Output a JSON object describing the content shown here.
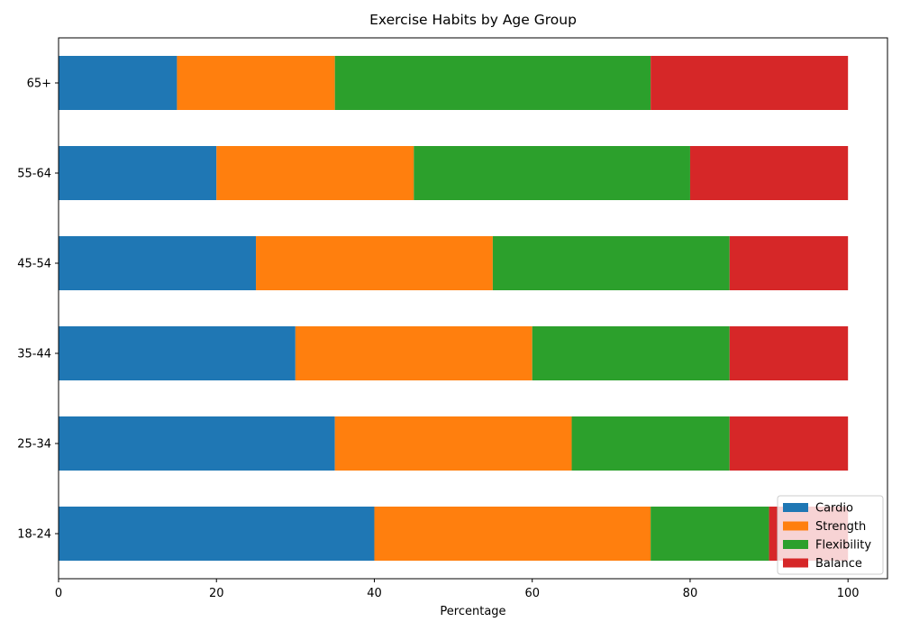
{
  "chart_data": {
    "type": "bar",
    "orientation": "horizontal",
    "stacked": true,
    "title": "Exercise Habits by Age Group",
    "xlabel": "Percentage",
    "ylabel": "",
    "xlim": [
      0,
      105
    ],
    "xticks": [
      0,
      20,
      40,
      60,
      80,
      100
    ],
    "categories": [
      "18-24",
      "25-34",
      "35-44",
      "45-54",
      "55-64",
      "65+"
    ],
    "series": [
      {
        "name": "Cardio",
        "color": "#1f77b4",
        "values": [
          40,
          35,
          30,
          25,
          20,
          15
        ]
      },
      {
        "name": "Strength",
        "color": "#ff7f0e",
        "values": [
          35,
          30,
          30,
          30,
          25,
          20
        ]
      },
      {
        "name": "Flexibility",
        "color": "#2ca02c",
        "values": [
          15,
          20,
          25,
          30,
          35,
          40
        ]
      },
      {
        "name": "Balance",
        "color": "#d62728",
        "values": [
          10,
          15,
          15,
          15,
          20,
          25
        ]
      }
    ],
    "grid": false,
    "legend_position": "lower right"
  }
}
